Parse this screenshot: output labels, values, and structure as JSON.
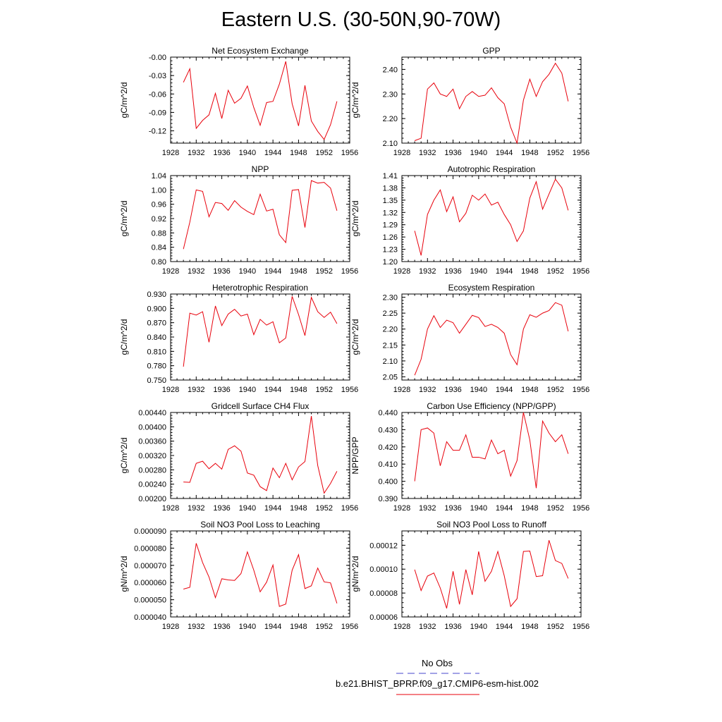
{
  "figure": {
    "title": "Eastern U.S. (30-50N,90-70W)",
    "legend": [
      {
        "label": "No Obs",
        "color": "#4444cc",
        "style": "dashed"
      },
      {
        "label": "b.e21.BHIST_BPRP.f09_g17.CMIP6-esm-hist.002",
        "color": "#e8000b",
        "style": "solid"
      }
    ],
    "line_color": "#e8000b"
  },
  "chart_data": [
    {
      "type": "line",
      "title": "Net Ecosystem Exchange",
      "ylabel": "gC/m^2/d",
      "xlim": [
        1928,
        1956
      ],
      "ylim": [
        -0.14,
        0.0
      ],
      "xticks": [
        "1928",
        "1932",
        "1936",
        "1940",
        "1944",
        "1948",
        "1952",
        "1956"
      ],
      "yticks": [
        "-0.00",
        "-0.03",
        "-0.06",
        "-0.09",
        "-0.12"
      ],
      "yticks_values": [
        0.0,
        -0.03,
        -0.06,
        -0.09,
        -0.12
      ],
      "x": [
        1930,
        1931,
        1932,
        1933,
        1934,
        1935,
        1936,
        1937,
        1938,
        1939,
        1940,
        1941,
        1942,
        1943,
        1944,
        1945,
        1946,
        1947,
        1948,
        1949,
        1950,
        1951,
        1952,
        1953,
        1954
      ],
      "values": [
        -0.041,
        -0.019,
        -0.116,
        -0.103,
        -0.094,
        -0.059,
        -0.1,
        -0.054,
        -0.075,
        -0.067,
        -0.047,
        -0.082,
        -0.111,
        -0.074,
        -0.072,
        -0.044,
        -0.007,
        -0.076,
        -0.112,
        -0.046,
        -0.104,
        -0.121,
        -0.134,
        -0.11,
        -0.072
      ]
    },
    {
      "type": "line",
      "title": "GPP",
      "ylabel": "gC/m^2/d",
      "xlim": [
        1928,
        1956
      ],
      "ylim": [
        2.1,
        2.45
      ],
      "xticks": [
        "1928",
        "1932",
        "1936",
        "1940",
        "1944",
        "1948",
        "1952",
        "1956"
      ],
      "yticks": [
        "2.40",
        "2.30",
        "2.20",
        "2.10"
      ],
      "yticks_values": [
        2.4,
        2.3,
        2.2,
        2.1
      ],
      "x": [
        1930,
        1931,
        1932,
        1933,
        1934,
        1935,
        1936,
        1937,
        1938,
        1939,
        1940,
        1941,
        1942,
        1943,
        1944,
        1945,
        1946,
        1947,
        1948,
        1949,
        1950,
        1951,
        1952,
        1953,
        1954
      ],
      "values": [
        2.11,
        2.12,
        2.32,
        2.345,
        2.3,
        2.29,
        2.32,
        2.24,
        2.29,
        2.31,
        2.29,
        2.295,
        2.325,
        2.285,
        2.26,
        2.165,
        2.1,
        2.275,
        2.36,
        2.29,
        2.35,
        2.38,
        2.425,
        2.385,
        2.27
      ]
    },
    {
      "type": "line",
      "title": "NPP",
      "ylabel": "gC/m^2/d",
      "xlim": [
        1928,
        1956
      ],
      "ylim": [
        0.8,
        1.04
      ],
      "xticks": [
        "1928",
        "1932",
        "1936",
        "1940",
        "1944",
        "1948",
        "1952",
        "1956"
      ],
      "yticks": [
        "1.04",
        "1.00",
        "0.96",
        "0.92",
        "0.88",
        "0.84",
        "0.80"
      ],
      "yticks_values": [
        1.04,
        1.0,
        0.96,
        0.92,
        0.88,
        0.84,
        0.8
      ],
      "x": [
        1930,
        1931,
        1932,
        1933,
        1934,
        1935,
        1936,
        1937,
        1938,
        1939,
        1940,
        1941,
        1942,
        1943,
        1944,
        1945,
        1946,
        1947,
        1948,
        1949,
        1950,
        1951,
        1952,
        1953,
        1954
      ],
      "values": [
        0.835,
        0.91,
        1.0,
        0.996,
        0.925,
        0.965,
        0.962,
        0.943,
        0.97,
        0.952,
        0.94,
        0.931,
        0.988,
        0.941,
        0.946,
        0.875,
        0.853,
        0.999,
        1.001,
        0.895,
        1.026,
        1.019,
        1.021,
        1.005,
        0.942
      ]
    },
    {
      "type": "line",
      "title": "Autotrophic Respiration",
      "ylabel": "gC/m^2/d",
      "xlim": [
        1928,
        1956
      ],
      "ylim": [
        1.2,
        1.41
      ],
      "xticks": [
        "1928",
        "1932",
        "1936",
        "1940",
        "1944",
        "1948",
        "1952",
        "1956"
      ],
      "yticks": [
        "1.41",
        "1.38",
        "1.35",
        "1.32",
        "1.29",
        "1.26",
        "1.23",
        "1.20"
      ],
      "yticks_values": [
        1.41,
        1.38,
        1.35,
        1.32,
        1.29,
        1.26,
        1.23,
        1.2
      ],
      "x": [
        1930,
        1931,
        1932,
        1933,
        1934,
        1935,
        1936,
        1937,
        1938,
        1939,
        1940,
        1941,
        1942,
        1943,
        1944,
        1945,
        1946,
        1947,
        1948,
        1949,
        1950,
        1951,
        1952,
        1953,
        1954
      ],
      "values": [
        1.275,
        1.215,
        1.315,
        1.35,
        1.375,
        1.322,
        1.358,
        1.297,
        1.318,
        1.362,
        1.35,
        1.365,
        1.338,
        1.345,
        1.315,
        1.29,
        1.249,
        1.275,
        1.355,
        1.395,
        1.328,
        1.365,
        1.401,
        1.38,
        1.325
      ]
    },
    {
      "type": "line",
      "title": "Heterotrophic Respiration",
      "ylabel": "gC/m^2/d",
      "xlim": [
        1928,
        1956
      ],
      "ylim": [
        0.75,
        0.93
      ],
      "xticks": [
        "1928",
        "1932",
        "1936",
        "1940",
        "1944",
        "1948",
        "1952",
        "1956"
      ],
      "yticks": [
        "0.930",
        "0.900",
        "0.870",
        "0.840",
        "0.810",
        "0.780",
        "0.750"
      ],
      "yticks_values": [
        0.93,
        0.9,
        0.87,
        0.84,
        0.81,
        0.78,
        0.75
      ],
      "x": [
        1930,
        1931,
        1932,
        1933,
        1934,
        1935,
        1936,
        1937,
        1938,
        1939,
        1940,
        1941,
        1942,
        1943,
        1944,
        1945,
        1946,
        1947,
        1948,
        1949,
        1950,
        1951,
        1952,
        1953,
        1954
      ],
      "values": [
        0.778,
        0.89,
        0.886,
        0.893,
        0.829,
        0.905,
        0.864,
        0.888,
        0.898,
        0.884,
        0.888,
        0.845,
        0.877,
        0.865,
        0.872,
        0.828,
        0.838,
        0.925,
        0.887,
        0.843,
        0.923,
        0.893,
        0.881,
        0.892,
        0.868
      ]
    },
    {
      "type": "line",
      "title": "Ecosystem Respiration",
      "ylabel": "gC/m^2/d",
      "xlim": [
        1928,
        1956
      ],
      "ylim": [
        2.04,
        2.31
      ],
      "xticks": [
        "1928",
        "1932",
        "1936",
        "1940",
        "1944",
        "1948",
        "1952",
        "1956"
      ],
      "yticks": [
        "2.30",
        "2.25",
        "2.20",
        "2.15",
        "2.10",
        "2.05"
      ],
      "yticks_values": [
        2.3,
        2.25,
        2.2,
        2.15,
        2.1,
        2.05
      ],
      "x": [
        1930,
        1931,
        1932,
        1933,
        1934,
        1935,
        1936,
        1937,
        1938,
        1939,
        1940,
        1941,
        1942,
        1943,
        1944,
        1945,
        1946,
        1947,
        1948,
        1949,
        1950,
        1951,
        1952,
        1953,
        1954
      ],
      "values": [
        2.055,
        2.105,
        2.2,
        2.242,
        2.205,
        2.228,
        2.22,
        2.187,
        2.215,
        2.243,
        2.236,
        2.208,
        2.215,
        2.205,
        2.187,
        2.12,
        2.088,
        2.2,
        2.245,
        2.237,
        2.25,
        2.258,
        2.283,
        2.275,
        2.193
      ]
    },
    {
      "type": "line",
      "title": "Gridcell Surface CH4 Flux",
      "ylabel": "gC/m^2/d",
      "xlim": [
        1928,
        1956
      ],
      "ylim": [
        0.002,
        0.0044
      ],
      "xticks": [
        "1928",
        "1932",
        "1936",
        "1940",
        "1944",
        "1948",
        "1952",
        "1956"
      ],
      "yticks": [
        "0.00440",
        "0.00400",
        "0.00360",
        "0.00320",
        "0.00280",
        "0.00240",
        "0.00200"
      ],
      "yticks_values": [
        0.0044,
        0.004,
        0.0036,
        0.0032,
        0.0028,
        0.0024,
        0.002
      ],
      "x": [
        1930,
        1931,
        1932,
        1933,
        1934,
        1935,
        1936,
        1937,
        1938,
        1939,
        1940,
        1941,
        1942,
        1943,
        1944,
        1945,
        1946,
        1947,
        1948,
        1949,
        1950,
        1951,
        1952,
        1953,
        1954
      ],
      "values": [
        0.00246,
        0.00245,
        0.00298,
        0.00304,
        0.00283,
        0.00298,
        0.00282,
        0.00337,
        0.00347,
        0.00332,
        0.00271,
        0.00265,
        0.00233,
        0.00222,
        0.00285,
        0.00258,
        0.00298,
        0.00252,
        0.00288,
        0.00303,
        0.0043,
        0.00292,
        0.00215,
        0.00242,
        0.00276
      ]
    },
    {
      "type": "line",
      "title": "Carbon Use Efficiency (NPP/GPP)",
      "ylabel": "NPP/GPP",
      "xlim": [
        1928,
        1956
      ],
      "ylim": [
        0.39,
        0.44
      ],
      "xticks": [
        "1928",
        "1932",
        "1936",
        "1940",
        "1944",
        "1948",
        "1952",
        "1956"
      ],
      "yticks": [
        "0.440",
        "0.430",
        "0.420",
        "0.410",
        "0.400",
        "0.390"
      ],
      "yticks_values": [
        0.44,
        0.43,
        0.42,
        0.41,
        0.4,
        0.39
      ],
      "x": [
        1930,
        1931,
        1932,
        1933,
        1934,
        1935,
        1936,
        1937,
        1938,
        1939,
        1940,
        1941,
        1942,
        1943,
        1944,
        1945,
        1946,
        1947,
        1948,
        1949,
        1950,
        1951,
        1952,
        1953,
        1954
      ],
      "values": [
        0.4,
        0.43,
        0.431,
        0.428,
        0.409,
        0.423,
        0.418,
        0.418,
        0.427,
        0.414,
        0.414,
        0.413,
        0.424,
        0.416,
        0.418,
        0.403,
        0.412,
        0.44,
        0.424,
        0.396,
        0.435,
        0.428,
        0.423,
        0.427,
        0.416
      ]
    },
    {
      "type": "line",
      "title": "Soil NO3 Pool Loss to Leaching",
      "ylabel": "gN/m^2/d",
      "xlim": [
        1928,
        1956
      ],
      "ylim": [
        4e-05,
        9e-05
      ],
      "xticks": [
        "1928",
        "1932",
        "1936",
        "1940",
        "1944",
        "1948",
        "1952",
        "1956"
      ],
      "yticks": [
        "0.000090",
        "0.000080",
        "0.000070",
        "0.000060",
        "0.000050",
        "0.000040"
      ],
      "yticks_values": [
        9e-05,
        8e-05,
        7e-05,
        6e-05,
        5e-05,
        4e-05
      ],
      "x": [
        1930,
        1931,
        1932,
        1933,
        1934,
        1935,
        1936,
        1937,
        1938,
        1939,
        1940,
        1941,
        1942,
        1943,
        1944,
        1945,
        1946,
        1947,
        1948,
        1949,
        1950,
        1951,
        1952,
        1953,
        1954
      ],
      "values": [
        5.62e-05,
        5.72e-05,
        8.28e-05,
        7.16e-05,
        6.32e-05,
        5.12e-05,
        6.22e-05,
        6.15e-05,
        6.12e-05,
        6.52e-05,
        7.78e-05,
        6.72e-05,
        5.46e-05,
        6.02e-05,
        7.02e-05,
        4.61e-05,
        4.75e-05,
        6.72e-05,
        7.62e-05,
        5.65e-05,
        5.81e-05,
        6.84e-05,
        6.04e-05,
        5.98e-05,
        4.79e-05
      ]
    },
    {
      "type": "line",
      "title": "Soil NO3 Pool Loss to Runoff",
      "ylabel": "gN/m^2/d",
      "xlim": [
        1928,
        1956
      ],
      "ylim": [
        6e-05,
        0.000132
      ],
      "xticks": [
        "1928",
        "1932",
        "1936",
        "1940",
        "1944",
        "1948",
        "1952",
        "1956"
      ],
      "yticks": [
        "0.00012",
        "0.00010",
        "0.00008",
        "0.00006"
      ],
      "yticks_values": [
        0.00012,
        0.0001,
        8e-05,
        6e-05
      ],
      "x": [
        1930,
        1931,
        1932,
        1933,
        1934,
        1935,
        1936,
        1937,
        1938,
        1939,
        1940,
        1941,
        1942,
        1943,
        1944,
        1945,
        1946,
        1947,
        1948,
        1949,
        1950,
        1951,
        1952,
        1953,
        1954
      ],
      "values": [
        9.96e-05,
        8.21e-05,
        9.42e-05,
        9.68e-05,
        8.42e-05,
        6.72e-05,
        9.82e-05,
        7.05e-05,
        9.96e-05,
        7.85e-05,
        0.0001148,
        8.98e-05,
        9.82e-05,
        0.0001148,
        9.45e-05,
        6.88e-05,
        7.52e-05,
        0.0001148,
        0.0001152,
        9.38e-05,
        9.45e-05,
        0.0001242,
        0.0001072,
        0.0001048,
        9.22e-05
      ]
    }
  ]
}
